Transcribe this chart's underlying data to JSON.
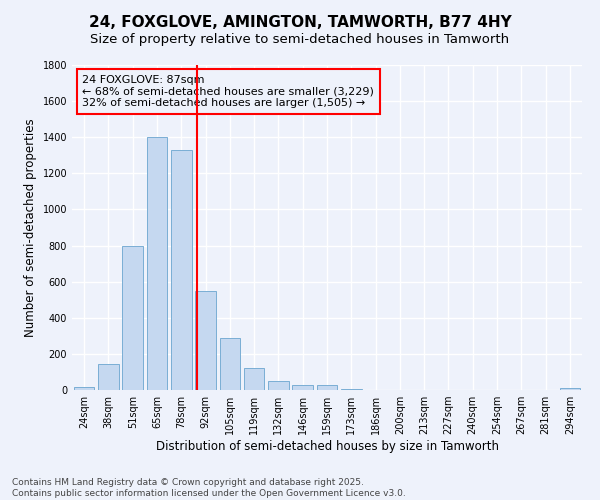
{
  "title": "24, FOXGLOVE, AMINGTON, TAMWORTH, B77 4HY",
  "subtitle": "Size of property relative to semi-detached houses in Tamworth",
  "xlabel": "Distribution of semi-detached houses by size in Tamworth",
  "ylabel": "Number of semi-detached properties",
  "categories": [
    "24sqm",
    "38sqm",
    "51sqm",
    "65sqm",
    "78sqm",
    "92sqm",
    "105sqm",
    "119sqm",
    "132sqm",
    "146sqm",
    "159sqm",
    "173sqm",
    "186sqm",
    "200sqm",
    "213sqm",
    "227sqm",
    "240sqm",
    "254sqm",
    "267sqm",
    "281sqm",
    "294sqm"
  ],
  "values": [
    15,
    145,
    800,
    1400,
    1330,
    550,
    290,
    120,
    50,
    25,
    25,
    5,
    0,
    0,
    0,
    0,
    0,
    0,
    0,
    0,
    10
  ],
  "bar_color": "#c5d8f0",
  "bar_edge_color": "#7aaed4",
  "vline_color": "red",
  "annotation_title": "24 FOXGLOVE: 87sqm",
  "annotation_line1": "← 68% of semi-detached houses are smaller (3,229)",
  "annotation_line2": "32% of semi-detached houses are larger (1,505) →",
  "ylim": [
    0,
    1800
  ],
  "yticks": [
    0,
    200,
    400,
    600,
    800,
    1000,
    1200,
    1400,
    1600,
    1800
  ],
  "footer1": "Contains HM Land Registry data © Crown copyright and database right 2025.",
  "footer2": "Contains public sector information licensed under the Open Government Licence v3.0.",
  "bg_color": "#eef2fb",
  "grid_color": "#ffffff",
  "title_fontsize": 11,
  "subtitle_fontsize": 9.5,
  "axis_label_fontsize": 8.5,
  "tick_fontsize": 7,
  "footer_fontsize": 6.5,
  "annotation_fontsize": 8
}
